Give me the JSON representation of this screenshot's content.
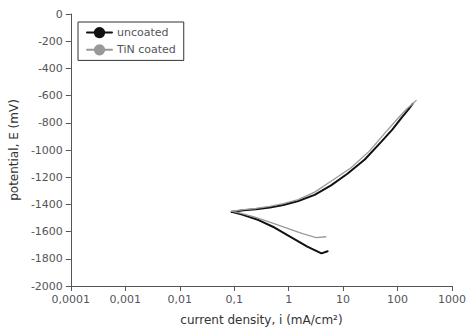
{
  "chart_data": {
    "type": "line",
    "xlabel": "current density, i (mA/cm²)",
    "ylabel": "potential, E (mV)",
    "log": "x",
    "grid": false,
    "legend": "upper left",
    "xlim": [
      0.0001,
      1000
    ],
    "ylim": [
      -2000,
      0
    ],
    "xticks": [
      {
        "value": 0.0001,
        "label": "0,0001"
      },
      {
        "value": 0.001,
        "label": "0,001"
      },
      {
        "value": 0.01,
        "label": "0,01"
      },
      {
        "value": 0.1,
        "label": "0,1"
      },
      1,
      10,
      100,
      1000
    ],
    "yticks": [
      0,
      -200,
      -400,
      -600,
      -800,
      -1000,
      -1200,
      -1400,
      -1600,
      -1800,
      -2000
    ],
    "series": [
      {
        "name": "uncoated",
        "color": "#111111",
        "x": [
          0.09,
          0.11,
          0.15,
          0.25,
          0.45,
          0.8,
          1.5,
          3.0,
          6.0,
          12,
          25,
          50,
          80,
          120,
          160,
          190,
          null,
          0.09,
          0.14,
          0.28,
          0.55,
          1.1,
          2.2,
          4.0,
          5.2
        ],
        "values": [
          -1455,
          -1450,
          -1443,
          -1435,
          -1422,
          -1405,
          -1375,
          -1330,
          -1260,
          -1175,
          -1070,
          -940,
          -850,
          -760,
          -700,
          -660,
          null,
          -1455,
          -1475,
          -1515,
          -1570,
          -1640,
          -1710,
          -1760,
          -1745
        ]
      },
      {
        "name": "TiN coated",
        "color": "#999999",
        "x": [
          0.09,
          0.11,
          0.15,
          0.25,
          0.45,
          0.8,
          1.5,
          3.0,
          6.0,
          14,
          30,
          60,
          100,
          150,
          190,
          220,
          null,
          0.09,
          0.13,
          0.24,
          0.45,
          0.9,
          1.8,
          3.2,
          4.8
        ],
        "values": [
          -1450,
          -1445,
          -1438,
          -1430,
          -1415,
          -1395,
          -1365,
          -1310,
          -1230,
          -1130,
          -1010,
          -870,
          -770,
          -695,
          -660,
          -635,
          null,
          -1450,
          -1465,
          -1493,
          -1530,
          -1572,
          -1615,
          -1645,
          -1638
        ]
      }
    ]
  }
}
